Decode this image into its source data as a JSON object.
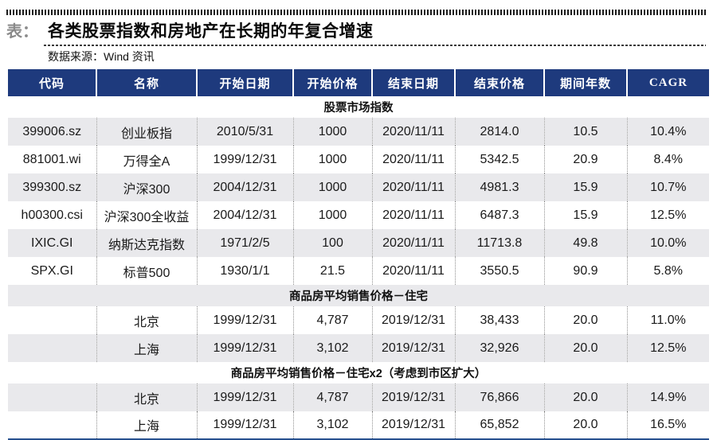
{
  "header": {
    "tag": "表：",
    "title": "各类股票指数和房地产在长期的年复合增速",
    "source": "数据来源：Wind 资讯"
  },
  "colors": {
    "header_bg": "#1e3a7d",
    "row_alt_bg": "#e9e9ec",
    "bottom_border": "#27508f",
    "tag_gray": "#8a8a8a"
  },
  "table": {
    "columns": [
      "代码",
      "名称",
      "开始日期",
      "开始价格",
      "结束日期",
      "结束价格",
      "期间年数",
      "CAGR"
    ],
    "sections": [
      {
        "title": "股票市场指数",
        "rows": [
          [
            "399006.sz",
            "创业板指",
            "2010/5/31",
            "1000",
            "2020/11/11",
            "2814.0",
            "10.5",
            "10.4%"
          ],
          [
            "881001.wi",
            "万得全A",
            "1999/12/31",
            "1000",
            "2020/11/11",
            "5342.5",
            "20.9",
            "8.4%"
          ],
          [
            "399300.sz",
            "沪深300",
            "2004/12/31",
            "1000",
            "2020/11/11",
            "4981.3",
            "15.9",
            "10.7%"
          ],
          [
            "h00300.csi",
            "沪深300全收益",
            "2004/12/31",
            "1000",
            "2020/11/11",
            "6487.3",
            "15.9",
            "12.5%"
          ],
          [
            "IXIC.GI",
            "纳斯达克指数",
            "1971/2/5",
            "100",
            "2020/11/11",
            "11713.8",
            "49.8",
            "10.0%"
          ],
          [
            "SPX.GI",
            "标普500",
            "1930/1/1",
            "21.5",
            "2020/11/11",
            "3550.5",
            "90.9",
            "5.8%"
          ]
        ]
      },
      {
        "title": "商品房平均销售价格－住宅",
        "rows": [
          [
            "",
            "北京",
            "1999/12/31",
            "4,787",
            "2019/12/31",
            "38,433",
            "20.0",
            "11.0%"
          ],
          [
            "",
            "上海",
            "1999/12/31",
            "3,102",
            "2019/12/31",
            "32,926",
            "20.0",
            "12.5%"
          ]
        ]
      },
      {
        "title": "商品房平均销售价格－住宅x2（考虑到市区扩大）",
        "rows": [
          [
            "",
            "北京",
            "1999/12/31",
            "4,787",
            "2019/12/31",
            "76,866",
            "20.0",
            "14.9%"
          ],
          [
            "",
            "上海",
            "1999/12/31",
            "3,102",
            "2019/12/31",
            "65,852",
            "20.0",
            "16.5%"
          ]
        ]
      }
    ]
  }
}
